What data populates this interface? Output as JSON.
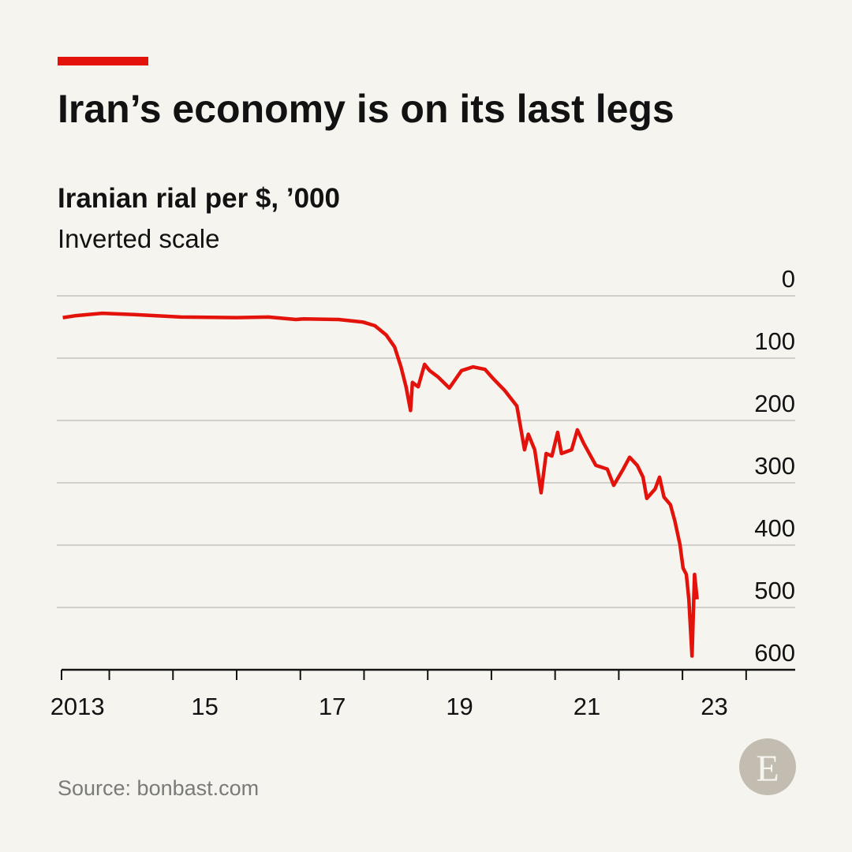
{
  "chart_data": {
    "type": "line",
    "title": "Iran’s economy is on its last legs",
    "subtitle": "Iranian rial per $, ’000",
    "note": "Inverted scale",
    "source": "Source: bonbast.com",
    "inverted": true,
    "grid": true,
    "xlim": [
      2013.25,
      2024.77
    ],
    "ylim": [
      0,
      600
    ],
    "yticks": [
      0,
      100,
      200,
      300,
      400,
      500,
      600
    ],
    "xticks": [
      {
        "value": 2013.5,
        "label": "2013"
      },
      {
        "value": 2015.5,
        "label": "15"
      },
      {
        "value": 2017.5,
        "label": "17"
      },
      {
        "value": 2019.5,
        "label": "19"
      },
      {
        "value": 2021.5,
        "label": "21"
      },
      {
        "value": 2023.5,
        "label": "23"
      }
    ],
    "minor_xticks": [
      2014,
      2015,
      2016,
      2017,
      2018,
      2019,
      2020,
      2021,
      2022,
      2023,
      2024
    ],
    "color": "#e3120b",
    "x": [
      2013.27,
      2013.46,
      2013.89,
      2014.39,
      2015.13,
      2016.0,
      2016.5,
      2016.93,
      2017.05,
      2017.6,
      2017.98,
      2018.17,
      2018.35,
      2018.48,
      2018.58,
      2018.66,
      2018.73,
      2018.76,
      2018.85,
      2018.95,
      2019.03,
      2019.16,
      2019.34,
      2019.53,
      2019.71,
      2019.9,
      2020.03,
      2020.21,
      2020.4,
      2020.52,
      2020.58,
      2020.68,
      2020.78,
      2020.86,
      2020.95,
      2021.04,
      2021.1,
      2021.26,
      2021.35,
      2021.45,
      2021.64,
      2021.82,
      2021.92,
      2022.07,
      2022.17,
      2022.29,
      2022.38,
      2022.44,
      2022.57,
      2022.64,
      2022.71,
      2022.81,
      2022.88,
      2022.96,
      2023.01,
      2023.06,
      2023.1,
      2023.15,
      2023.19,
      2023.23
    ],
    "values": [
      35,
      32,
      28,
      30,
      34,
      35,
      34,
      38,
      37,
      38,
      42,
      48,
      63,
      82,
      114,
      146,
      184,
      139,
      146,
      110,
      120,
      130,
      148,
      120,
      114,
      118,
      133,
      152,
      177,
      247,
      222,
      247,
      316,
      253,
      257,
      219,
      253,
      247,
      215,
      237,
      272,
      278,
      304,
      278,
      259,
      272,
      291,
      325,
      310,
      291,
      323,
      335,
      361,
      399,
      437,
      447,
      487,
      578,
      447,
      487
    ]
  }
}
